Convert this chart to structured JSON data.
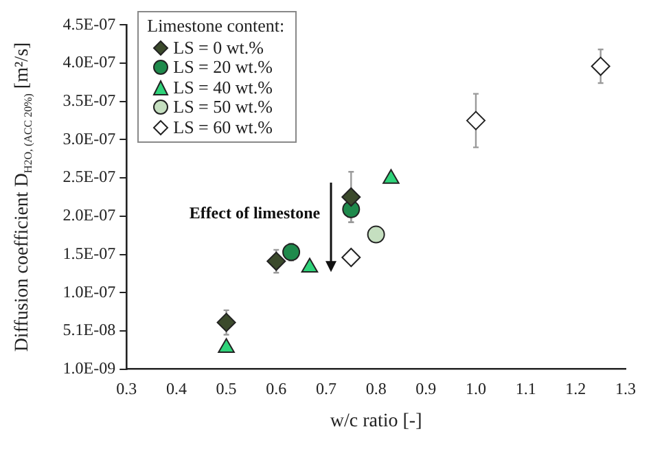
{
  "chart_data": {
    "type": "scatter",
    "xlabel": "w/c ratio [-]",
    "ylabel": "Diffusion coefficient D$_{H2O, (ACC 20%)}$ [m²/s]",
    "legend_title": "Limestone content:",
    "legend": "top left",
    "grid": false,
    "xlim": [
      0.3,
      1.3
    ],
    "xticks": [
      {
        "value": 0.3,
        "label": "0.3"
      },
      {
        "value": 0.4,
        "label": "0.4"
      },
      {
        "value": 0.5,
        "label": "0.5"
      },
      {
        "value": 0.6,
        "label": "0.6"
      },
      {
        "value": 0.7,
        "label": "0.7"
      },
      {
        "value": 0.8,
        "label": "0.8"
      },
      {
        "value": 0.9,
        "label": "0.9"
      },
      {
        "value": 1.0,
        "label": "1.0"
      },
      {
        "value": 1.1,
        "label": "1.1"
      },
      {
        "value": 1.2,
        "label": "1.2"
      },
      {
        "value": 1.3,
        "label": "1.3"
      }
    ],
    "ylim": [
      1e-09,
      4.51e-07
    ],
    "yticks": [
      {
        "value": 1e-09,
        "label": "1.0E-09"
      },
      {
        "value": 5.1e-08,
        "label": "5.1E-08"
      },
      {
        "value": 1.01e-07,
        "label": "1.0E-07"
      },
      {
        "value": 1.51e-07,
        "label": "1.5E-07"
      },
      {
        "value": 2.01e-07,
        "label": "2.0E-07"
      },
      {
        "value": 2.51e-07,
        "label": "2.5E-07"
      },
      {
        "value": 3.01e-07,
        "label": "3.0E-07"
      },
      {
        "value": 3.51e-07,
        "label": "3.5E-07"
      },
      {
        "value": 4.01e-07,
        "label": "4.0E-07"
      },
      {
        "value": 4.51e-07,
        "label": "4.5E-07"
      }
    ],
    "annotations": [
      "Effect of limestone"
    ],
    "series": [
      {
        "name": "LS = 0 wt.%",
        "color": "#3b4a2c",
        "marker": "diamond",
        "x": [
          0.5,
          0.6,
          0.75
        ],
        "values": [
          6.2e-08,
          1.42e-07,
          2.26e-07
        ],
        "errors": [
          1.6e-08,
          1.5e-08,
          3.3e-08
        ]
      },
      {
        "name": "LS = 20 wt.%",
        "color": "#1f8a4c",
        "marker": "circle",
        "x": [
          0.63,
          0.75
        ],
        "values": [
          1.54e-07,
          2.1e-07
        ],
        "errors": [
          1.1e-08,
          1.7e-08
        ]
      },
      {
        "name": "LS = 40 wt.%",
        "color": "#2fd37a",
        "marker": "triangle",
        "x": [
          0.5,
          0.667,
          0.83
        ],
        "values": [
          2.9e-08,
          1.34e-07,
          2.5e-07
        ]
      },
      {
        "name": "LS = 50 wt.%",
        "color": "#c5dfc0",
        "marker": "circle",
        "x": [
          0.8
        ],
        "values": [
          1.77e-07
        ]
      },
      {
        "name": "LS = 60 wt.%",
        "color": "#ffffff",
        "marker": "diamond",
        "x": [
          0.75,
          1.0,
          1.25
        ],
        "values": [
          1.47e-07,
          3.26e-07,
          3.97e-07
        ],
        "errors": [
          8e-09,
          3.5e-08,
          2.2e-08
        ]
      }
    ]
  }
}
